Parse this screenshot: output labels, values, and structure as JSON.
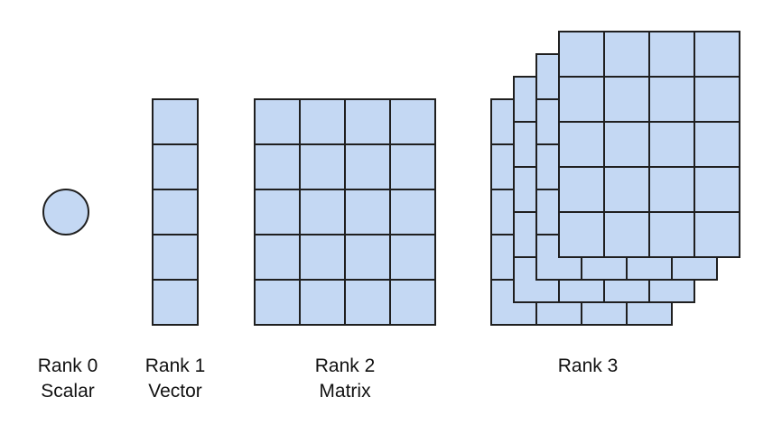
{
  "colors": {
    "cell_fill": "#c4d8f3",
    "cell_stroke": "#1f1f1f",
    "background": "#ffffff"
  },
  "items": [
    {
      "rank": "Rank 0",
      "name": "Scalar",
      "shape": "circle",
      "dims": []
    },
    {
      "rank": "Rank 1",
      "name": "Vector",
      "shape": "grid",
      "dims": [
        5
      ]
    },
    {
      "rank": "Rank 2",
      "name": "Matrix",
      "shape": "grid",
      "dims": [
        5,
        4
      ]
    },
    {
      "rank": "Rank 3",
      "name": "",
      "shape": "stack",
      "dims": [
        4,
        5,
        4
      ]
    }
  ]
}
